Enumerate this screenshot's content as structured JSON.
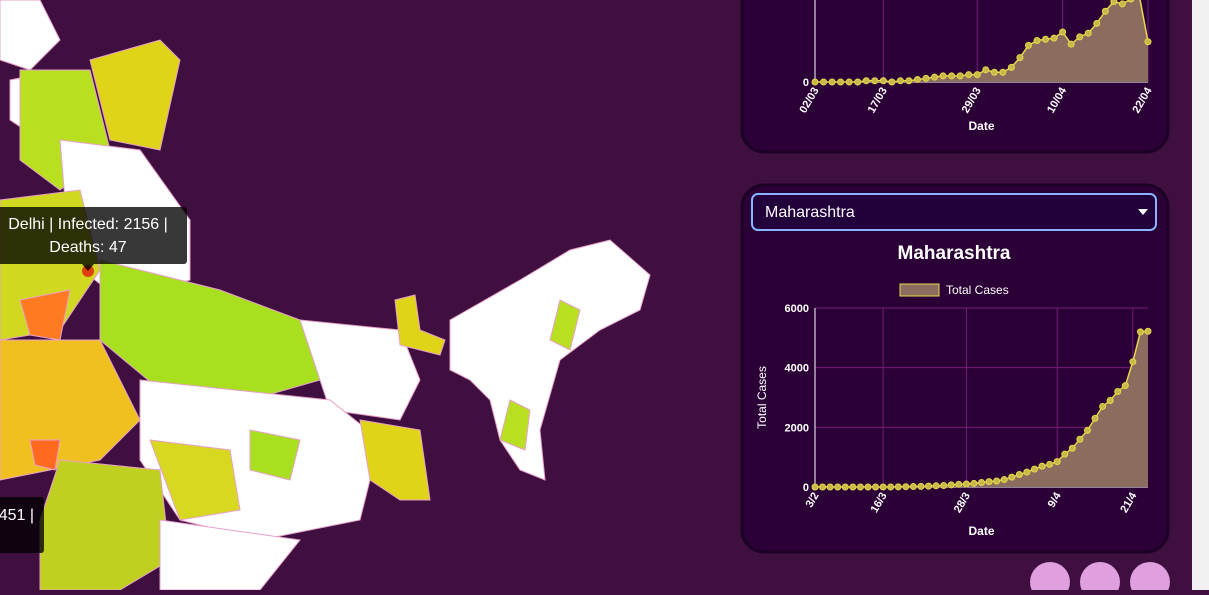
{
  "map": {
    "tooltips": [
      {
        "lines": [
          "Delhi | Infected: 2156 |",
          "Deaths: 47"
        ]
      },
      {
        "lines": [
          "451 |"
        ]
      }
    ]
  },
  "charts": [
    {
      "type": "line",
      "x_label": "Date",
      "categories": [
        "02/03",
        null,
        null,
        null,
        null,
        null,
        null,
        null,
        "17/03",
        null,
        null,
        null,
        null,
        null,
        null,
        null,
        null,
        null,
        null,
        "29/03",
        null,
        null,
        null,
        null,
        null,
        null,
        null,
        null,
        null,
        "10/04",
        null,
        null,
        null,
        null,
        null,
        null,
        null,
        null,
        null,
        "22/04"
      ],
      "series": [
        {
          "color": "#e6d84a",
          "fill": "#8a6d5e",
          "values": [
            0,
            0,
            0,
            0,
            0,
            0,
            1,
            1,
            1,
            0,
            1,
            1,
            2,
            3,
            4,
            5,
            5,
            5,
            6,
            6,
            10,
            8,
            8,
            12,
            20,
            30,
            34,
            35,
            36,
            41,
            31,
            37,
            40,
            48,
            58,
            66,
            64,
            68,
            70,
            33
          ]
        }
      ],
      "ylim": [
        0,
        100
      ],
      "yticks": [
        0
      ],
      "grid": true
    },
    {
      "type": "line",
      "dropdown": "Maharashtra",
      "title": "Maharashtra",
      "x_label": "Date",
      "y_label": "Total Cases",
      "categories": [
        "3/2",
        null,
        null,
        null,
        null,
        null,
        null,
        null,
        null,
        "16/3",
        null,
        null,
        null,
        null,
        null,
        null,
        null,
        null,
        null,
        null,
        "28/3",
        null,
        null,
        null,
        null,
        null,
        null,
        null,
        null,
        null,
        null,
        null,
        "9/4",
        null,
        null,
        null,
        null,
        null,
        null,
        null,
        null,
        null,
        "21/4",
        null,
        null
      ],
      "series": [
        {
          "name": "Total Cases",
          "color": "#e6d84a",
          "fill": "#8a6d5e",
          "values": [
            0,
            0,
            0,
            0,
            0,
            0,
            0,
            0,
            0,
            0,
            2,
            5,
            10,
            15,
            20,
            30,
            40,
            50,
            70,
            90,
            100,
            120,
            150,
            180,
            200,
            250,
            330,
            420,
            500,
            600,
            700,
            760,
            850,
            1100,
            1300,
            1600,
            1900,
            2300,
            2700,
            2900,
            3200,
            3400,
            4200,
            5200,
            5220
          ]
        }
      ],
      "ylim": [
        0,
        6000
      ],
      "yticks": [
        0,
        2000,
        4000,
        6000
      ],
      "grid": true
    }
  ]
}
